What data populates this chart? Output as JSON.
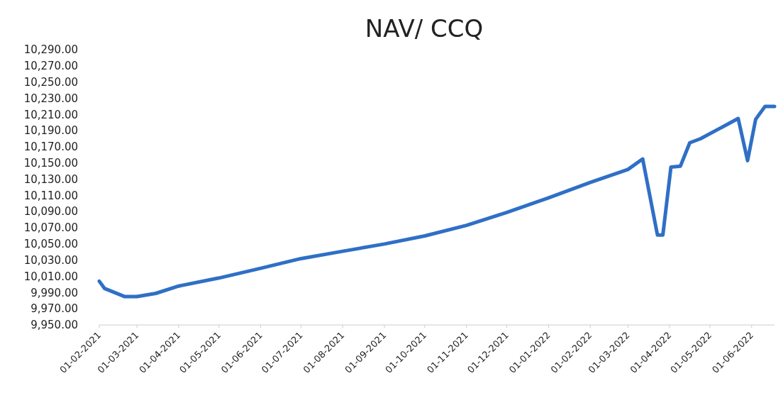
{
  "chart_data": {
    "type": "line",
    "title": "NAV/ CCQ",
    "x": [
      "2021-02-01",
      "2021-02-05",
      "2021-02-20",
      "2021-03-01",
      "2021-03-15",
      "2021-04-01",
      "2021-05-01",
      "2021-06-01",
      "2021-07-01",
      "2021-08-01",
      "2021-09-01",
      "2021-10-01",
      "2021-11-01",
      "2021-12-01",
      "2022-01-01",
      "2022-02-01",
      "2022-03-01",
      "2022-03-12",
      "2022-03-23",
      "2022-03-27",
      "2022-04-02",
      "2022-04-09",
      "2022-04-16",
      "2022-04-24",
      "2022-05-22",
      "2022-05-29",
      "2022-06-04",
      "2022-06-11",
      "2022-06-18"
    ],
    "series": [
      {
        "color": "#2f6fc6",
        "values": [
          10004,
          9995,
          9985,
          9985,
          9989,
          9998,
          10008,
          10020,
          10032,
          10041,
          10050,
          10060,
          10073,
          10089,
          10107,
          10126,
          10142,
          10155,
          10061,
          10061,
          10145,
          10146,
          10175,
          10180,
          10205,
          10153,
          10204,
          10220,
          10220
        ]
      }
    ],
    "xlim": [
      "2021-02-01",
      "2022-06-18"
    ],
    "xticks": [
      {
        "value": "2021-02-01",
        "label": "01-02-2021"
      },
      {
        "value": "2021-03-01",
        "label": "01-03-2021"
      },
      {
        "value": "2021-04-01",
        "label": "01-04-2021"
      },
      {
        "value": "2021-05-01",
        "label": "01-05-2021"
      },
      {
        "value": "2021-06-01",
        "label": "01-06-2021"
      },
      {
        "value": "2021-07-01",
        "label": "01-07-2021"
      },
      {
        "value": "2021-08-01",
        "label": "01-08-2021"
      },
      {
        "value": "2021-09-01",
        "label": "01-09-2021"
      },
      {
        "value": "2021-10-01",
        "label": "01-10-2021"
      },
      {
        "value": "2021-11-01",
        "label": "01-11-2021"
      },
      {
        "value": "2021-12-01",
        "label": "01-12-2021"
      },
      {
        "value": "2022-01-01",
        "label": "01-01-2022"
      },
      {
        "value": "2022-02-01",
        "label": "01-02-2022"
      },
      {
        "value": "2022-03-01",
        "label": "01-03-2022"
      },
      {
        "value": "2022-04-01",
        "label": "01-04-2022"
      },
      {
        "value": "2022-05-01",
        "label": "01-05-2022"
      },
      {
        "value": "2022-06-01",
        "label": "01-06-2022"
      }
    ],
    "ylim": [
      9950,
      10290
    ],
    "yticks": [
      {
        "value": 9950,
        "label": "9,950.00"
      },
      {
        "value": 9970,
        "label": "9,970.00"
      },
      {
        "value": 9990,
        "label": "9,990.00"
      },
      {
        "value": 10010,
        "label": "10,010.00"
      },
      {
        "value": 10030,
        "label": "10,030.00"
      },
      {
        "value": 10050,
        "label": "10,050.00"
      },
      {
        "value": 10070,
        "label": "10,070.00"
      },
      {
        "value": 10090,
        "label": "10,090.00"
      },
      {
        "value": 10110,
        "label": "10,110.00"
      },
      {
        "value": 10130,
        "label": "10,130.00"
      },
      {
        "value": 10150,
        "label": "10,150.00"
      },
      {
        "value": 10170,
        "label": "10,170.00"
      },
      {
        "value": 10190,
        "label": "10,190.00"
      },
      {
        "value": 10210,
        "label": "10,210.00"
      },
      {
        "value": 10230,
        "label": "10,230.00"
      },
      {
        "value": 10250,
        "label": "10,250.00"
      },
      {
        "value": 10270,
        "label": "10,270.00"
      },
      {
        "value": 10290,
        "label": "10,290.00"
      }
    ],
    "grid": false,
    "marker": "none",
    "line_style": "solid"
  }
}
